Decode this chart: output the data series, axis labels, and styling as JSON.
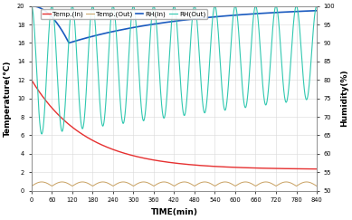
{
  "title": "",
  "xlabel": "TIME(min)",
  "ylabel_left": "Temperature(°C)",
  "ylabel_right": "Humidity(%)",
  "xlim": [
    0,
    840
  ],
  "ylim_left": [
    0,
    20
  ],
  "ylim_right": [
    50,
    100
  ],
  "xticks": [
    0,
    60,
    120,
    180,
    240,
    300,
    360,
    420,
    480,
    540,
    600,
    660,
    720,
    780,
    840
  ],
  "yticks_left": [
    0,
    2,
    4,
    6,
    8,
    10,
    12,
    14,
    16,
    18,
    20
  ],
  "yticks_right": [
    50,
    55,
    60,
    65,
    70,
    75,
    80,
    85,
    90,
    95,
    100
  ],
  "legend": [
    "Temp.(In)",
    "Temp.(Out)",
    "RH(In)",
    "RH(Out)"
  ],
  "colors": {
    "temp_in": "#e63030",
    "temp_out": "#c8a060",
    "rh_in": "#1a5abf",
    "rh_out": "#30c8b0"
  },
  "background": "#ffffff",
  "grid_color": "#d8d8d8",
  "temp_in_start": 12.0,
  "temp_in_end": 2.3,
  "temp_in_tau": 160,
  "rh_in_start": 100,
  "rh_in_dip": 90,
  "rh_in_dip_t": 110,
  "rh_in_recovery_tau": 350,
  "rh_out_upper": 100,
  "rh_out_lower_start": 65,
  "rh_out_lower_end": 75,
  "rh_out_period": 60
}
